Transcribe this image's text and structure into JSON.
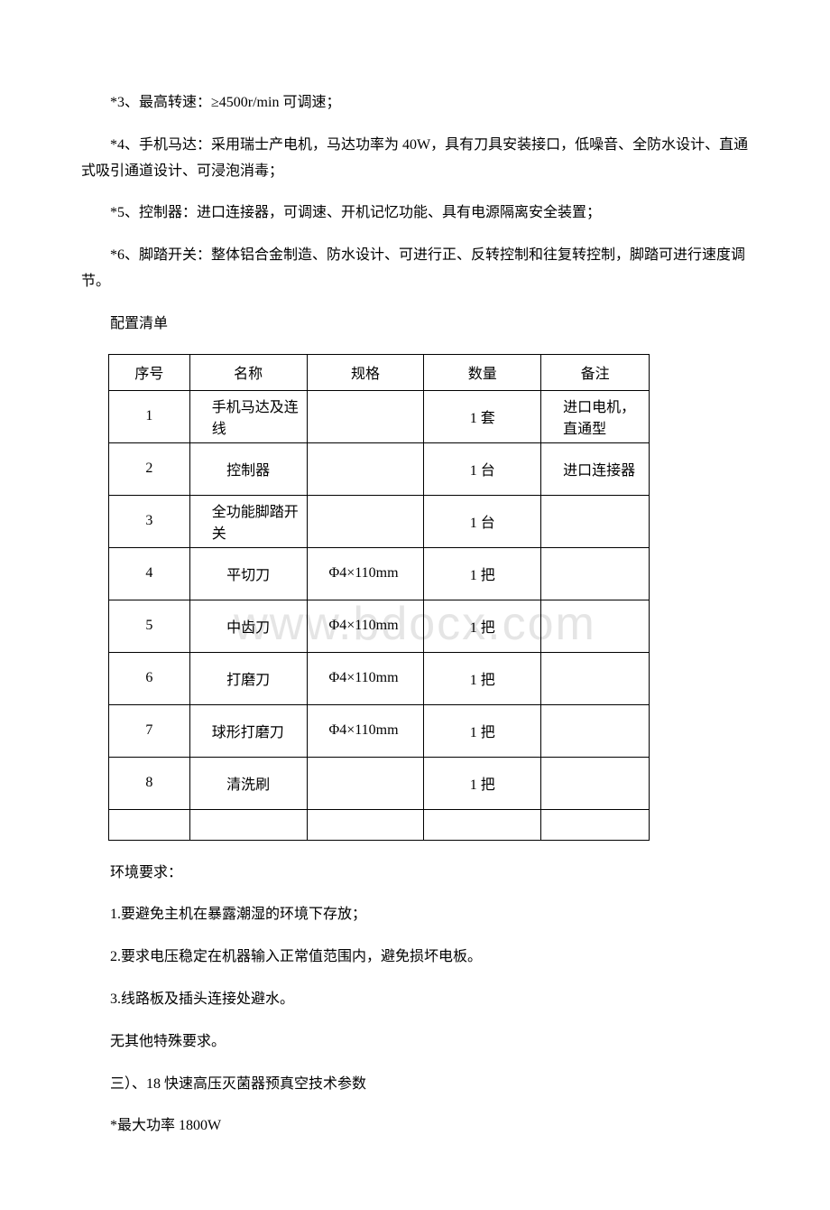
{
  "specs": {
    "p3": "*3、最高转速：≥4500r/min 可调速；",
    "p4": "*4、手机马达：采用瑞士产电机，马达功率为 40W，具有刀具安装接口，低噪音、全防水设计、直通式吸引通道设计、可浸泡消毒；",
    "p5": "*5、控制器：进口连接器，可调速、开机记忆功能、具有电源隔离安全装置；",
    "p6": "*6、脚踏开关：整体铝合金制造、防水设计、可进行正、反转控制和往复转控制，脚踏可进行速度调节。"
  },
  "table_title": "配置清单",
  "table": {
    "headers": [
      "序号",
      "名称",
      "规格",
      "数量",
      "备注"
    ],
    "rows": [
      {
        "no": "1",
        "name": "手机马达及连线",
        "spec": "",
        "qty": "1 套",
        "remark": "进口电机，直通型"
      },
      {
        "no": "2",
        "name": "控制器",
        "spec": "",
        "qty": "1 台",
        "remark": "进口连接器"
      },
      {
        "no": "3",
        "name": "全功能脚踏开关",
        "spec": "",
        "qty": "1 台",
        "remark": ""
      },
      {
        "no": "4",
        "name": "平切刀",
        "spec": "Φ4×110mm",
        "qty": "1 把",
        "remark": ""
      },
      {
        "no": "5",
        "name": "中齿刀",
        "spec": "Φ4×110mm",
        "qty": "1 把",
        "remark": ""
      },
      {
        "no": "6",
        "name": "打磨刀",
        "spec": "Φ4×110mm",
        "qty": "1 把",
        "remark": ""
      },
      {
        "no": "7",
        "name": "球形打磨刀",
        "spec": "Φ4×110mm",
        "qty": "1 把",
        "remark": ""
      },
      {
        "no": "8",
        "name": "清洗刷",
        "spec": "",
        "qty": "1 把",
        "remark": ""
      },
      {
        "no": "",
        "name": "",
        "spec": "",
        "qty": "",
        "remark": ""
      }
    ]
  },
  "watermark": "www.bdocx.com",
  "env": {
    "title": "环境要求：",
    "r1": "1.要避免主机在暴露潮湿的环境下存放；",
    "r2": "2.要求电压稳定在机器输入正常值范围内，避免损坏电板。",
    "r3": "3.线路板及插头连接处避水。",
    "none": " 无其他特殊要求。"
  },
  "section3": "三）、18 快速高压灭菌器预真空技术参数",
  "max_power": "*最大功率 1800W"
}
